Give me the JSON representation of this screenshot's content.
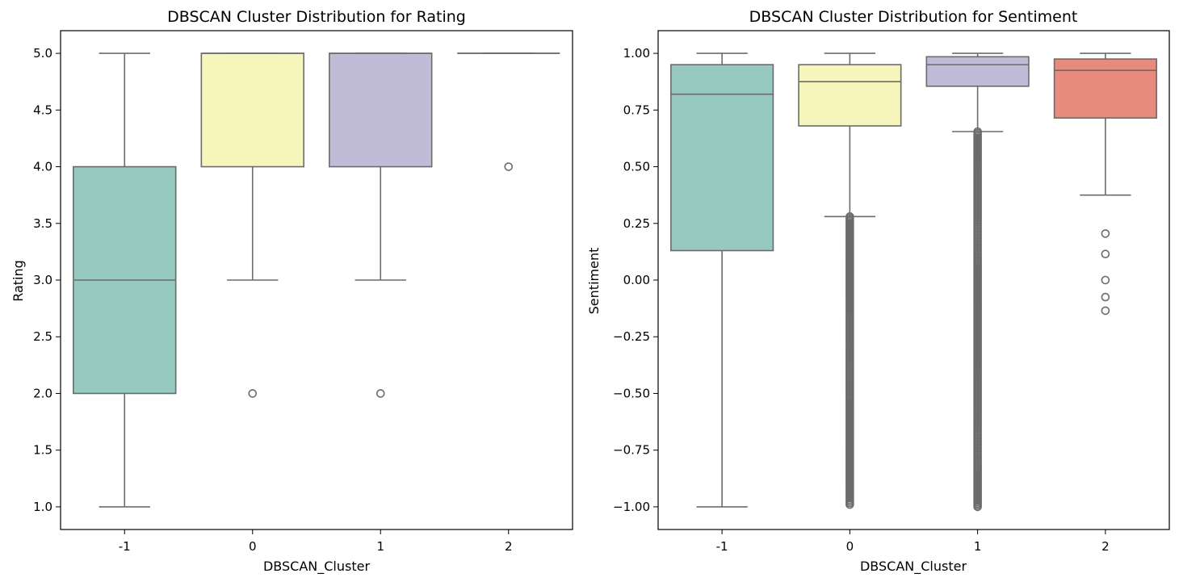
{
  "chart_data": [
    {
      "type": "box",
      "title": "DBSCAN Cluster Distribution for Rating",
      "xlabel": "DBSCAN_Cluster",
      "ylabel": "Rating",
      "categories": [
        "-1",
        "0",
        "1",
        "2"
      ],
      "ylim": [
        0.8,
        5.2
      ],
      "yticks": [
        1.0,
        1.5,
        2.0,
        2.5,
        3.0,
        3.5,
        4.0,
        4.5,
        5.0
      ],
      "ytick_labels": [
        "1.0",
        "1.5",
        "2.0",
        "2.5",
        "3.0",
        "3.5",
        "4.0",
        "4.5",
        "5.0"
      ],
      "boxes": [
        {
          "category": "-1",
          "whisker_low": 1.0,
          "q1": 2.0,
          "median": 3.0,
          "q3": 4.0,
          "whisker_high": 5.0,
          "color": "#96cac1",
          "outliers": []
        },
        {
          "category": "0",
          "whisker_low": 3.0,
          "q1": 4.0,
          "median": 5.0,
          "q3": 5.0,
          "whisker_high": 5.0,
          "color": "#f6f6bc",
          "outliers": [
            2.0
          ]
        },
        {
          "category": "1",
          "whisker_low": 3.0,
          "q1": 4.0,
          "median": 5.0,
          "q3": 5.0,
          "whisker_high": 5.0,
          "color": "#c0bcd7",
          "outliers": [
            2.0
          ]
        },
        {
          "category": "2",
          "whisker_low": 5.0,
          "q1": 5.0,
          "median": 5.0,
          "q3": 5.0,
          "whisker_high": 5.0,
          "color": "#e98a7f",
          "outliers": [
            4.0
          ]
        }
      ],
      "grid": false,
      "legend": "none"
    },
    {
      "type": "box",
      "title": "DBSCAN Cluster Distribution for Sentiment",
      "xlabel": "DBSCAN_Cluster",
      "ylabel": "Sentiment",
      "categories": [
        "-1",
        "0",
        "1",
        "2"
      ],
      "ylim": [
        -1.1,
        1.1
      ],
      "yticks": [
        -1.0,
        -0.75,
        -0.5,
        -0.25,
        0.0,
        0.25,
        0.5,
        0.75,
        1.0
      ],
      "ytick_labels": [
        "−1.00",
        "−0.75",
        "−0.50",
        "−0.25",
        "0.00",
        "0.25",
        "0.50",
        "0.75",
        "1.00"
      ],
      "boxes": [
        {
          "category": "-1",
          "whisker_low": -1.0,
          "q1": 0.13,
          "median": 0.82,
          "q3": 0.95,
          "whisker_high": 1.0,
          "color": "#96cac1",
          "outliers": []
        },
        {
          "category": "0",
          "whisker_low": 0.28,
          "q1": 0.68,
          "median": 0.875,
          "q3": 0.95,
          "whisker_high": 1.0,
          "color": "#f6f6bc",
          "outliers_range": [
            -0.99,
            0.28
          ]
        },
        {
          "category": "1",
          "whisker_low": 0.655,
          "q1": 0.855,
          "median": 0.95,
          "q3": 0.985,
          "whisker_high": 1.0,
          "color": "#c0bcd7",
          "outliers_range": [
            -1.0,
            0.655
          ]
        },
        {
          "category": "2",
          "whisker_low": 0.375,
          "q1": 0.715,
          "median": 0.925,
          "q3": 0.975,
          "whisker_high": 1.0,
          "color": "#e98a7f",
          "outliers": [
            0.205,
            0.115,
            0.0,
            -0.075,
            -0.135
          ]
        }
      ],
      "grid": false,
      "legend": "none"
    }
  ]
}
